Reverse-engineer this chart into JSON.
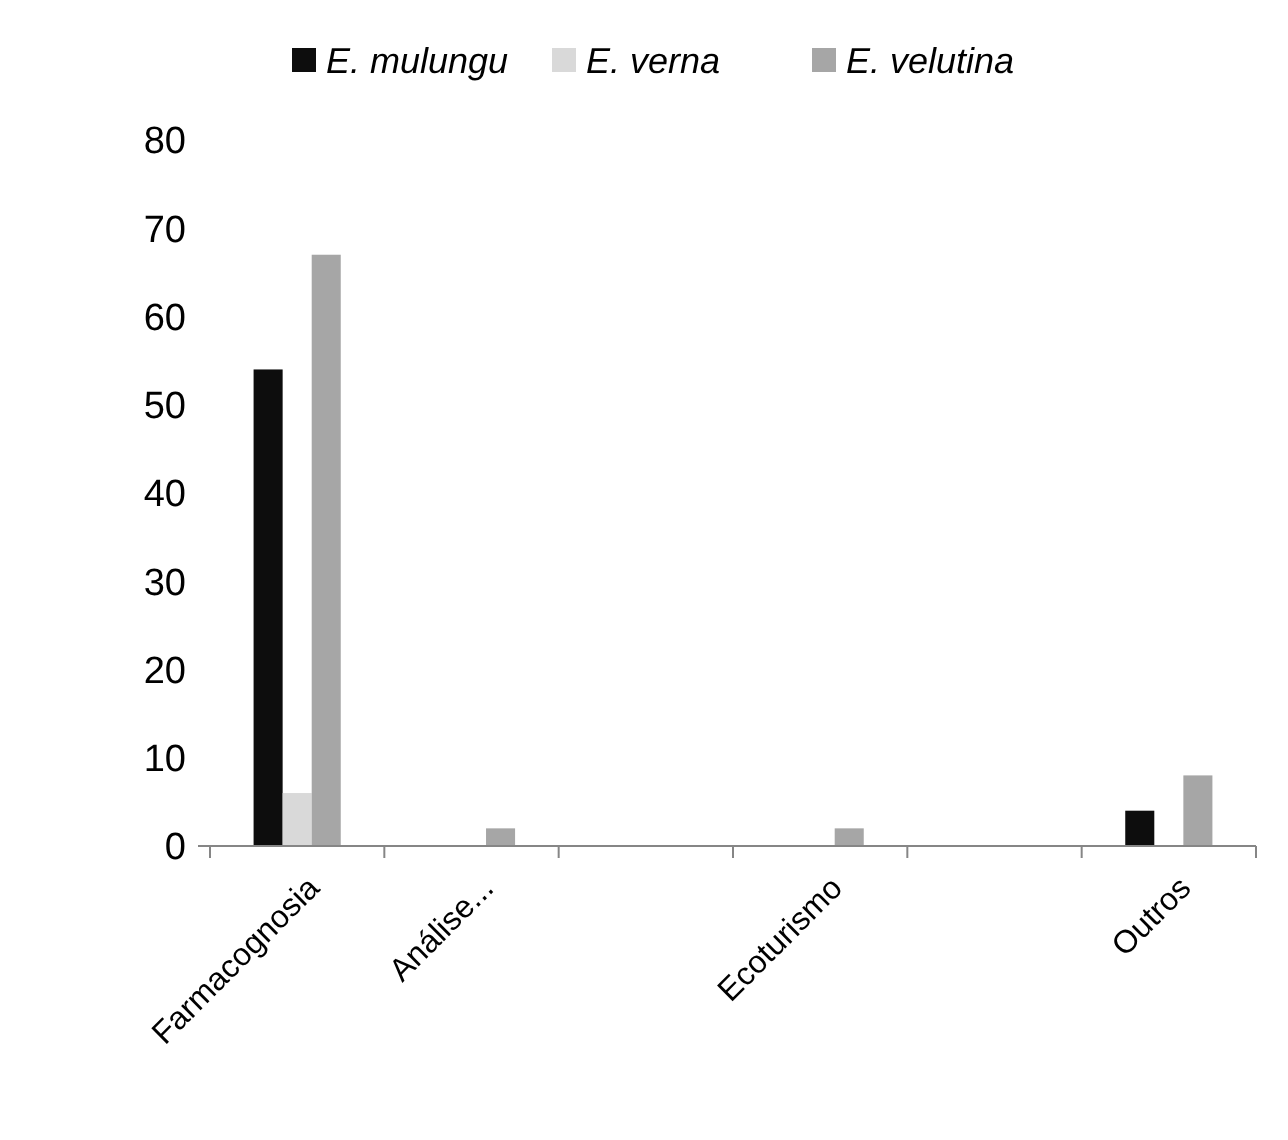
{
  "chart_data": {
    "type": "bar",
    "categories": [
      "Farmacognosia",
      "Análise...",
      null,
      "Ecoturismo",
      null,
      "Outros"
    ],
    "series": [
      {
        "name": "E. mulungu",
        "color": "#0d0d0d",
        "values": [
          54,
          0,
          0,
          0,
          0,
          4
        ]
      },
      {
        "name": "E. verna",
        "color": "#d9d9d9",
        "values": [
          6,
          0,
          0,
          0,
          0,
          0
        ]
      },
      {
        "name": "E. velutina",
        "color": "#a6a6a6",
        "values": [
          67,
          2,
          0,
          2,
          0,
          8
        ]
      }
    ],
    "ylim": [
      0,
      80
    ],
    "yticks": [
      0,
      10,
      20,
      30,
      40,
      50,
      60,
      70,
      80
    ],
    "grid": false,
    "legend": "top"
  }
}
